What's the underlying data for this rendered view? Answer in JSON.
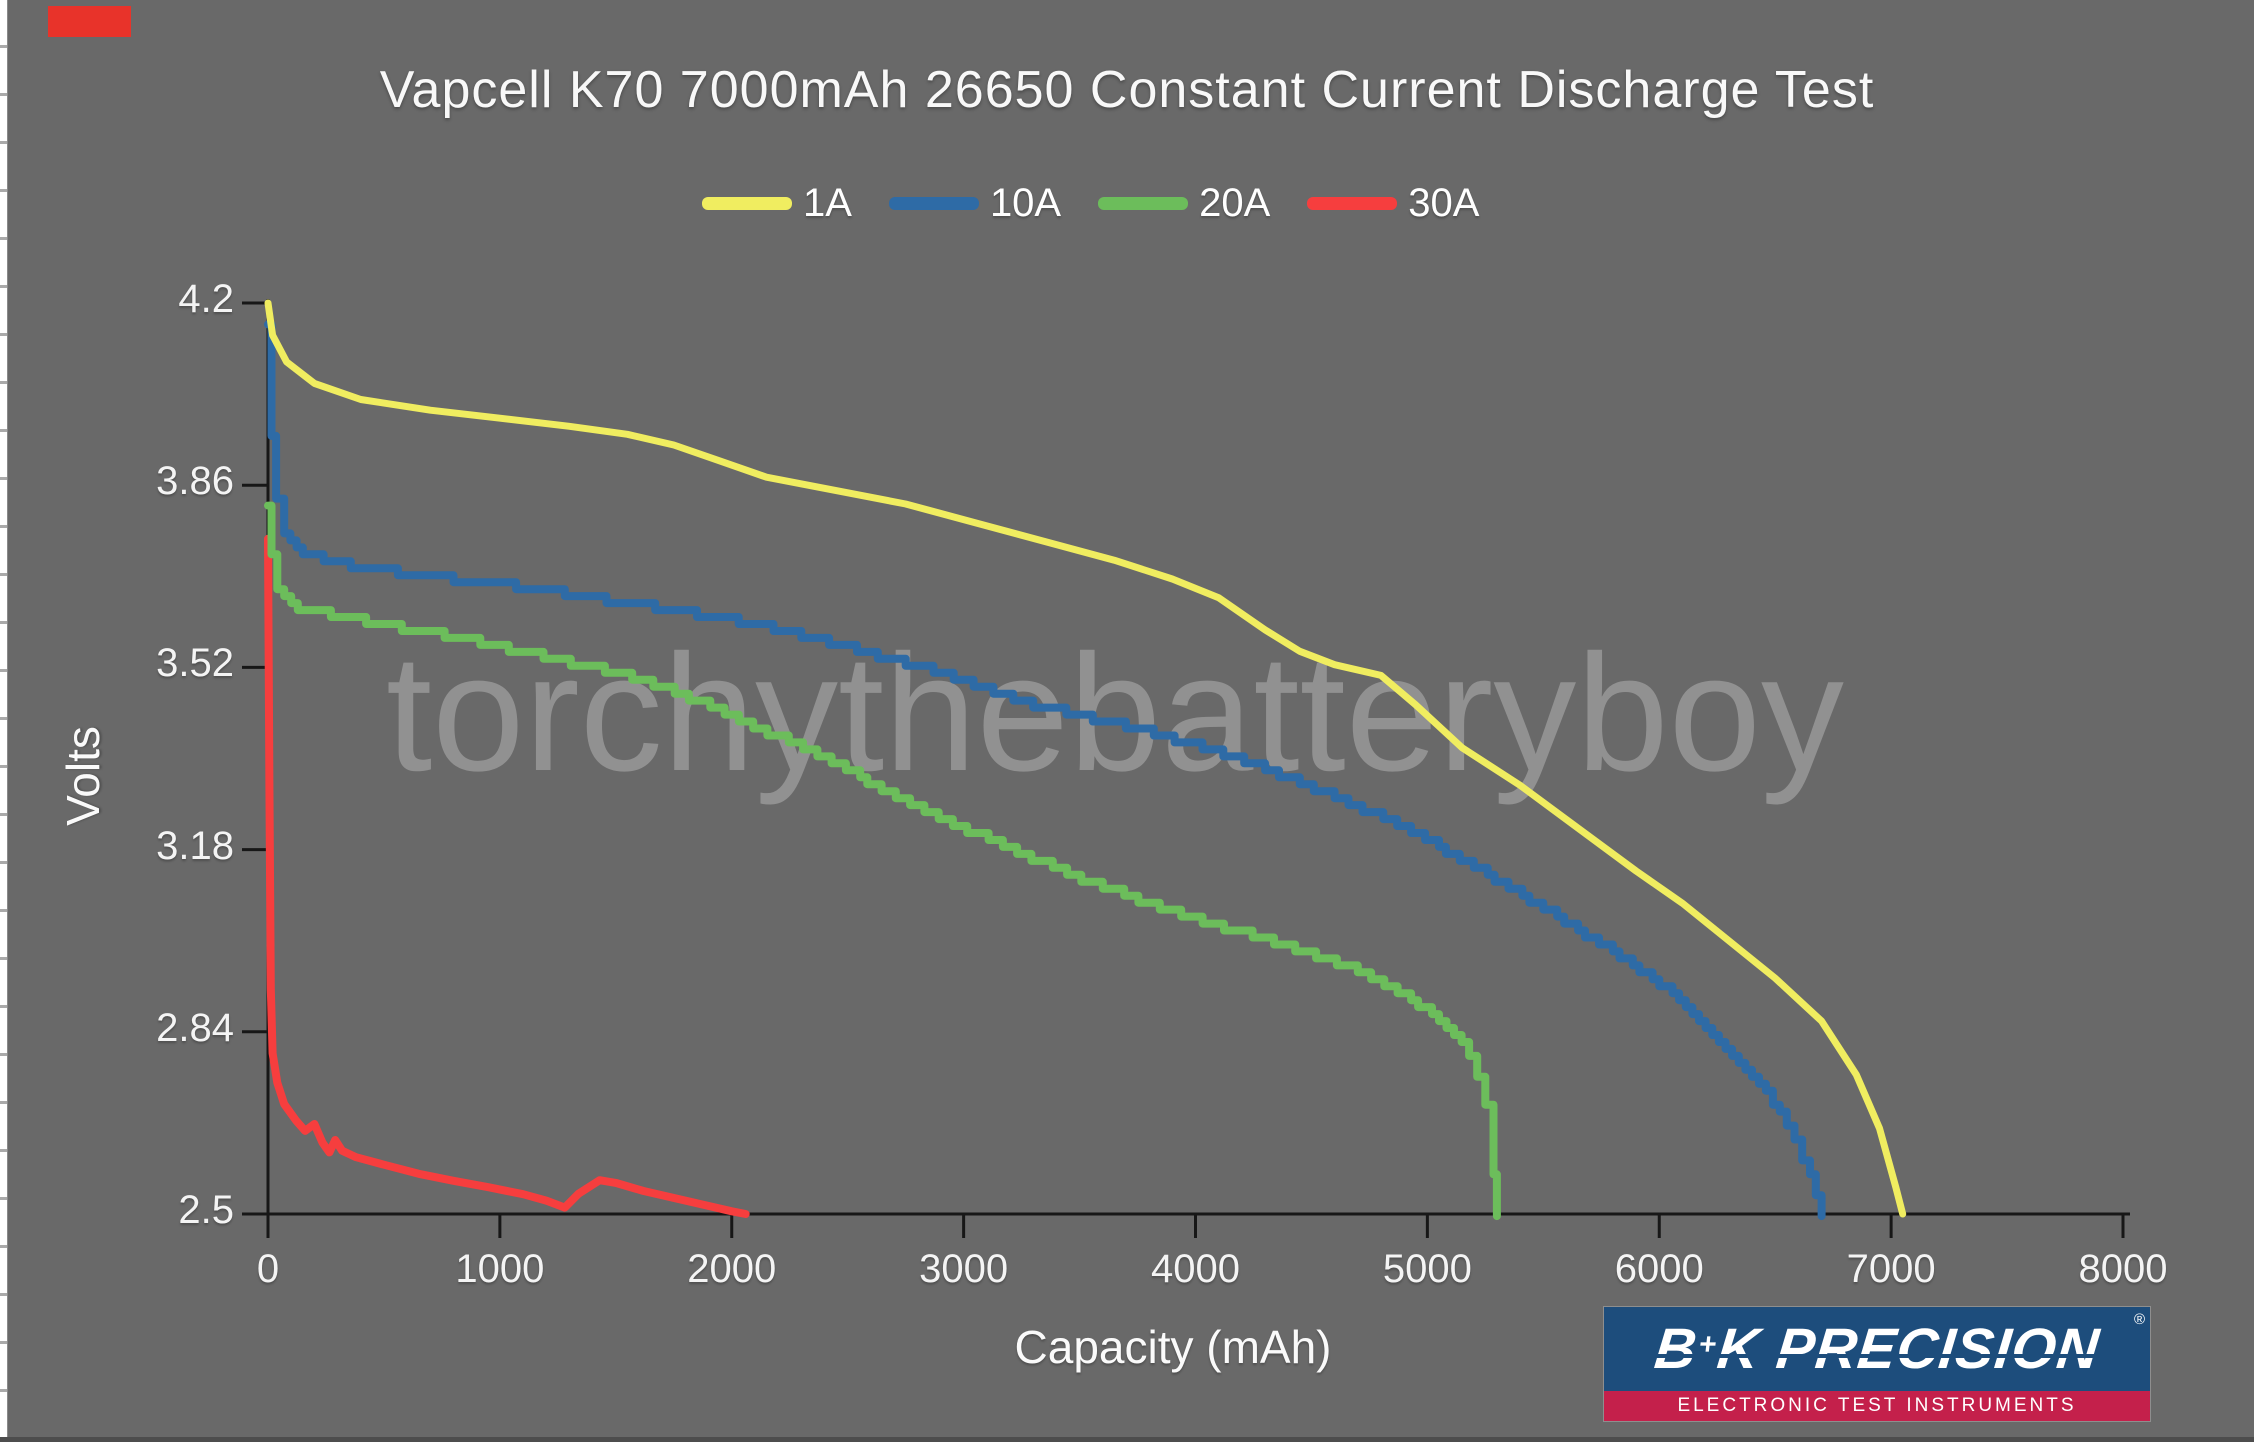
{
  "page": {
    "background": "#696969"
  },
  "decor": {
    "red_marker_color": "#e8332a"
  },
  "watermark": {
    "text": "torchythebatteryboy"
  },
  "logo": {
    "b": "B",
    "plus": "+",
    "k": "K",
    "name": "PRECISION",
    "registered": "®",
    "tagline": "ELECTRONIC TEST INSTRUMENTS",
    "bg_color": "#1d4d7c",
    "band_color": "#c4204b"
  },
  "chart_data": {
    "type": "line",
    "title": "Vapcell K70 7000mAh 26650 Constant Current Discharge Test",
    "xlabel": "Capacity (mAh)",
    "ylabel": "Volts",
    "xlim": [
      0,
      8000
    ],
    "ylim": [
      2.5,
      4.2
    ],
    "grid": false,
    "legend_position": "top-center",
    "x_ticks": [
      0,
      1000,
      2000,
      3000,
      4000,
      5000,
      6000,
      7000,
      8000
    ],
    "x_tick_labels": [
      "0",
      "1000",
      "2000",
      "3000",
      "4000",
      "5000",
      "6000",
      "7000",
      "8000"
    ],
    "y_ticks": [
      4.2,
      3.86,
      3.52,
      3.18,
      2.84,
      2.5
    ],
    "y_tick_labels": [
      "4.2",
      "3.86",
      "3.52",
      "3.18",
      "2.84",
      "2.5"
    ],
    "axis_color": "#171717",
    "series": [
      {
        "name": "30A",
        "color": "#f63e3e",
        "stepped": false,
        "points": [
          [
            0,
            3.76
          ],
          [
            6,
            3.3
          ],
          [
            12,
            2.92
          ],
          [
            20,
            2.8
          ],
          [
            40,
            2.745
          ],
          [
            70,
            2.705
          ],
          [
            120,
            2.675
          ],
          [
            160,
            2.655
          ],
          [
            200,
            2.668
          ],
          [
            235,
            2.633
          ],
          [
            265,
            2.615
          ],
          [
            290,
            2.638
          ],
          [
            320,
            2.618
          ],
          [
            380,
            2.606
          ],
          [
            500,
            2.592
          ],
          [
            650,
            2.575
          ],
          [
            800,
            2.562
          ],
          [
            950,
            2.55
          ],
          [
            1100,
            2.537
          ],
          [
            1200,
            2.525
          ],
          [
            1280,
            2.512
          ],
          [
            1340,
            2.538
          ],
          [
            1430,
            2.563
          ],
          [
            1500,
            2.558
          ],
          [
            1620,
            2.543
          ],
          [
            1770,
            2.528
          ],
          [
            1920,
            2.513
          ],
          [
            2000,
            2.505
          ],
          [
            2060,
            2.5
          ]
        ]
      },
      {
        "name": "20A",
        "color": "#6cbd5b",
        "stepped": true,
        "points": [
          [
            0,
            3.82
          ],
          [
            15,
            3.73
          ],
          [
            40,
            3.67
          ],
          [
            100,
            3.635
          ],
          [
            300,
            3.615
          ],
          [
            700,
            3.585
          ],
          [
            1100,
            3.55
          ],
          [
            1600,
            3.5
          ],
          [
            2000,
            3.43
          ],
          [
            2400,
            3.35
          ],
          [
            2800,
            3.26
          ],
          [
            3200,
            3.18
          ],
          [
            3600,
            3.11
          ],
          [
            4000,
            3.05
          ],
          [
            4400,
            3.0
          ],
          [
            4700,
            2.955
          ],
          [
            4900,
            2.91
          ],
          [
            5050,
            2.865
          ],
          [
            5180,
            2.8
          ],
          [
            5250,
            2.7
          ],
          [
            5285,
            2.57
          ],
          [
            5300,
            2.5
          ]
        ]
      },
      {
        "name": "10A",
        "color": "#2e6ba6",
        "stepped": true,
        "points": [
          [
            0,
            4.16
          ],
          [
            15,
            3.95
          ],
          [
            35,
            3.83
          ],
          [
            70,
            3.77
          ],
          [
            150,
            3.735
          ],
          [
            300,
            3.715
          ],
          [
            500,
            3.7
          ],
          [
            800,
            3.685
          ],
          [
            1100,
            3.67
          ],
          [
            1400,
            3.65
          ],
          [
            1700,
            3.63
          ],
          [
            2000,
            3.61
          ],
          [
            2300,
            3.58
          ],
          [
            2600,
            3.545
          ],
          [
            2900,
            3.51
          ],
          [
            3100,
            3.48
          ],
          [
            3300,
            3.45
          ],
          [
            3500,
            3.43
          ],
          [
            3700,
            3.41
          ],
          [
            4000,
            3.375
          ],
          [
            4300,
            3.33
          ],
          [
            4600,
            3.28
          ],
          [
            4900,
            3.22
          ],
          [
            5200,
            3.15
          ],
          [
            5500,
            3.07
          ],
          [
            5800,
            2.99
          ],
          [
            6000,
            2.93
          ],
          [
            6200,
            2.85
          ],
          [
            6400,
            2.76
          ],
          [
            6550,
            2.67
          ],
          [
            6650,
            2.57
          ],
          [
            6700,
            2.5
          ]
        ]
      },
      {
        "name": "1A",
        "color": "#f0ed60",
        "stepped": false,
        "points": [
          [
            0,
            4.2
          ],
          [
            20,
            4.14
          ],
          [
            80,
            4.09
          ],
          [
            200,
            4.05
          ],
          [
            400,
            4.02
          ],
          [
            700,
            4.0
          ],
          [
            1000,
            3.985
          ],
          [
            1300,
            3.97
          ],
          [
            1550,
            3.955
          ],
          [
            1750,
            3.935
          ],
          [
            1950,
            3.905
          ],
          [
            2150,
            3.875
          ],
          [
            2450,
            3.85
          ],
          [
            2750,
            3.825
          ],
          [
            3050,
            3.79
          ],
          [
            3350,
            3.755
          ],
          [
            3650,
            3.72
          ],
          [
            3900,
            3.685
          ],
          [
            4100,
            3.65
          ],
          [
            4300,
            3.59
          ],
          [
            4450,
            3.55
          ],
          [
            4600,
            3.525
          ],
          [
            4800,
            3.505
          ],
          [
            4950,
            3.45
          ],
          [
            5150,
            3.37
          ],
          [
            5400,
            3.3
          ],
          [
            5650,
            3.22
          ],
          [
            5900,
            3.14
          ],
          [
            6100,
            3.08
          ],
          [
            6300,
            3.01
          ],
          [
            6500,
            2.94
          ],
          [
            6700,
            2.86
          ],
          [
            6850,
            2.76
          ],
          [
            6950,
            2.66
          ],
          [
            7020,
            2.55
          ],
          [
            7050,
            2.5
          ]
        ]
      }
    ],
    "legend_order": [
      "1A",
      "10A",
      "20A",
      "30A"
    ]
  }
}
